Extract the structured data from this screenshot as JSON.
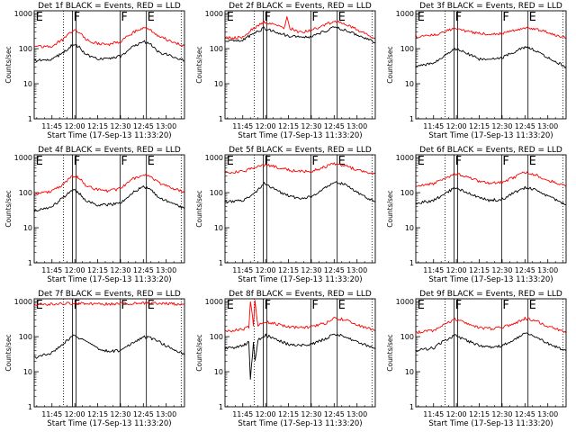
{
  "shared": {
    "xlabel": "Start Time (17-Sep-13 11:33:20)",
    "ylabel": "Counts/sec",
    "x_tick_labels": [
      "11:45",
      "12:00",
      "12:15",
      "12:30",
      "12:45",
      "13:00"
    ],
    "y_tick_labels": [
      "1",
      "10",
      "100",
      "1000"
    ],
    "colors": {
      "events": "#000000",
      "lld": "#ff0000",
      "frame": "#000000",
      "background": "#ffffff"
    }
  },
  "chart_data": [
    {
      "type": "line",
      "title": "Det 1f BLACK = Events, RED = LLD",
      "xlim": [
        "11:33:20",
        "13:12:00"
      ],
      "ylim": [
        1,
        1200
      ],
      "yscale": "log",
      "flags": [
        {
          "label": "E",
          "time": "11:33:40"
        },
        {
          "label": "F",
          "time": "11:58:30"
        },
        {
          "label": "F",
          "time": "12:29:40"
        },
        {
          "label": "E",
          "time": "12:47:00"
        }
      ],
      "flag_lines": [
        "11:58:30",
        "12:00:50",
        "12:29:40",
        "12:47:00"
      ],
      "dotted_lines": [
        "11:52:30",
        "13:09:50"
      ],
      "series": [
        {
          "name": "Events",
          "color": "#000000",
          "x": [
            "11:33:20",
            "11:45:00",
            "11:52:00",
            "11:59:00",
            "12:03:00",
            "12:07:00",
            "12:15:00",
            "12:22:00",
            "12:30:00",
            "12:38:00",
            "12:45:00",
            "12:50:00",
            "12:55:00",
            "13:05:00",
            "13:12:00"
          ],
          "y": [
            45,
            50,
            75,
            135,
            110,
            70,
            50,
            52,
            60,
            110,
            160,
            130,
            80,
            60,
            45
          ]
        },
        {
          "name": "LLD",
          "color": "#ff0000",
          "x": [
            "11:33:20",
            "11:45:00",
            "11:52:00",
            "11:59:00",
            "12:03:00",
            "12:07:00",
            "12:15:00",
            "12:22:00",
            "12:30:00",
            "12:38:00",
            "12:45:00",
            "12:50:00",
            "12:55:00",
            "13:05:00",
            "13:12:00"
          ],
          "y": [
            110,
            120,
            180,
            330,
            290,
            180,
            140,
            130,
            160,
            280,
            400,
            330,
            230,
            150,
            120
          ]
        }
      ]
    },
    {
      "type": "line",
      "title": "Det 2f BLACK = Events, RED = LLD",
      "xlim": [
        "11:33:20",
        "13:12:00"
      ],
      "ylim": [
        1,
        1200
      ],
      "yscale": "log",
      "flags": [
        {
          "label": "E",
          "time": "11:33:40"
        },
        {
          "label": "F",
          "time": "11:58:30"
        },
        {
          "label": "F",
          "time": "12:29:40"
        },
        {
          "label": "E",
          "time": "12:47:00"
        }
      ],
      "flag_lines": [
        "11:58:30",
        "12:00:50",
        "12:29:40",
        "12:47:00"
      ],
      "dotted_lines": [
        "11:52:30",
        "13:09:50"
      ],
      "series": [
        {
          "name": "Events",
          "color": "#000000",
          "x": [
            "11:33:20",
            "11:45:00",
            "11:52:00",
            "11:59:00",
            "12:05:00",
            "12:15:00",
            "12:22:00",
            "12:30:00",
            "12:40:00",
            "12:45:00",
            "12:52:00",
            "13:00:00",
            "13:12:00"
          ],
          "y": [
            165,
            175,
            270,
            380,
            310,
            230,
            210,
            220,
            330,
            400,
            350,
            250,
            150
          ]
        },
        {
          "name": "LLD",
          "color": "#ff0000",
          "x": [
            "11:33:20",
            "11:45:00",
            "11:52:00",
            "11:59:00",
            "12:05:00",
            "12:12:00",
            "12:14:00",
            "12:16:00",
            "12:22:00",
            "12:30:00",
            "12:40:00",
            "12:45:00",
            "12:52:00",
            "13:00:00",
            "13:12:00"
          ],
          "y": [
            200,
            210,
            380,
            560,
            500,
            380,
            800,
            380,
            300,
            330,
            500,
            600,
            500,
            350,
            200
          ]
        }
      ]
    },
    {
      "type": "line",
      "title": "Det 3f BLACK = Events, RED = LLD",
      "xlim": [
        "11:33:20",
        "13:12:00"
      ],
      "ylim": [
        1,
        1200
      ],
      "yscale": "log",
      "flags": [
        {
          "label": "E",
          "time": "11:33:40"
        },
        {
          "label": "F",
          "time": "11:58:30"
        },
        {
          "label": "F",
          "time": "12:29:40"
        },
        {
          "label": "E",
          "time": "12:47:00"
        }
      ],
      "flag_lines": [
        "11:58:30",
        "12:00:50",
        "12:29:40",
        "12:47:00"
      ],
      "dotted_lines": [
        "11:52:30",
        "13:09:50"
      ],
      "series": [
        {
          "name": "Events",
          "color": "#000000",
          "x": [
            "11:33:20",
            "11:45:00",
            "11:52:00",
            "11:59:00",
            "12:05:00",
            "12:15:00",
            "12:22:00",
            "12:30:00",
            "12:40:00",
            "12:45:00",
            "12:52:00",
            "13:00:00",
            "13:12:00"
          ],
          "y": [
            30,
            38,
            60,
            100,
            80,
            50,
            48,
            55,
            90,
            110,
            90,
            55,
            30
          ]
        },
        {
          "name": "LLD",
          "color": "#ff0000",
          "x": [
            "11:33:20",
            "11:45:00",
            "11:52:00",
            "11:59:00",
            "12:05:00",
            "12:15:00",
            "12:22:00",
            "12:30:00",
            "12:40:00",
            "12:45:00",
            "12:52:00",
            "13:00:00",
            "13:12:00"
          ],
          "y": [
            220,
            240,
            300,
            380,
            330,
            270,
            260,
            270,
            350,
            400,
            360,
            290,
            200
          ]
        }
      ]
    },
    {
      "type": "line",
      "title": "Det 4f BLACK = Events, RED = LLD",
      "xlim": [
        "11:33:20",
        "13:12:00"
      ],
      "ylim": [
        1,
        1200
      ],
      "yscale": "log",
      "flags": [
        {
          "label": "E",
          "time": "11:33:40"
        },
        {
          "label": "F",
          "time": "11:58:30"
        },
        {
          "label": "F",
          "time": "12:29:40"
        },
        {
          "label": "E",
          "time": "12:47:00"
        }
      ],
      "flag_lines": [
        "11:58:30",
        "12:00:50",
        "12:29:40",
        "12:47:00"
      ],
      "dotted_lines": [
        "11:52:30",
        "13:09:50"
      ],
      "series": [
        {
          "name": "Events",
          "color": "#000000",
          "x": [
            "11:33:20",
            "11:45:00",
            "11:52:00",
            "11:59:00",
            "12:03:00",
            "12:07:00",
            "12:15:00",
            "12:22:00",
            "12:30:00",
            "12:38:00",
            "12:45:00",
            "12:50:00",
            "12:55:00",
            "13:05:00",
            "13:12:00"
          ],
          "y": [
            30,
            40,
            70,
            120,
            95,
            60,
            45,
            45,
            50,
            100,
            150,
            120,
            70,
            50,
            35
          ]
        },
        {
          "name": "LLD",
          "color": "#ff0000",
          "x": [
            "11:33:20",
            "11:45:00",
            "11:52:00",
            "11:59:00",
            "12:03:00",
            "12:07:00",
            "12:15:00",
            "12:22:00",
            "12:30:00",
            "12:38:00",
            "12:45:00",
            "12:50:00",
            "12:55:00",
            "13:05:00",
            "13:12:00"
          ],
          "y": [
            90,
            110,
            170,
            300,
            260,
            160,
            120,
            110,
            130,
            240,
            330,
            280,
            190,
            130,
            100
          ]
        }
      ]
    },
    {
      "type": "line",
      "title": "Det 5f BLACK = Events, RED = LLD",
      "xlim": [
        "11:33:20",
        "13:12:00"
      ],
      "ylim": [
        1,
        1200
      ],
      "yscale": "log",
      "flags": [
        {
          "label": "E",
          "time": "11:33:40"
        },
        {
          "label": "F",
          "time": "11:58:30"
        },
        {
          "label": "F",
          "time": "12:29:40"
        },
        {
          "label": "E",
          "time": "12:47:00"
        }
      ],
      "flag_lines": [
        "11:58:30",
        "12:00:50",
        "12:29:40",
        "12:47:00"
      ],
      "dotted_lines": [
        "11:52:30",
        "13:09:50"
      ],
      "series": [
        {
          "name": "Events",
          "color": "#000000",
          "x": [
            "11:33:20",
            "11:45:00",
            "11:52:00",
            "11:59:00",
            "12:05:00",
            "12:15:00",
            "12:22:00",
            "12:30:00",
            "12:40:00",
            "12:45:00",
            "12:52:00",
            "13:00:00",
            "13:12:00"
          ],
          "y": [
            55,
            60,
            90,
            180,
            130,
            80,
            70,
            75,
            140,
            210,
            170,
            100,
            55
          ]
        },
        {
          "name": "LLD",
          "color": "#ff0000",
          "x": [
            "11:33:20",
            "11:45:00",
            "11:52:00",
            "11:59:00",
            "12:05:00",
            "12:15:00",
            "12:22:00",
            "12:30:00",
            "12:40:00",
            "12:45:00",
            "12:52:00",
            "13:00:00",
            "13:12:00"
          ],
          "y": [
            380,
            400,
            500,
            620,
            560,
            440,
            400,
            410,
            560,
            680,
            580,
            450,
            350
          ]
        }
      ]
    },
    {
      "type": "line",
      "title": "Det 6f BLACK = Events, RED = LLD",
      "xlim": [
        "11:33:20",
        "13:12:00"
      ],
      "ylim": [
        1,
        1200
      ],
      "yscale": "log",
      "flags": [
        {
          "label": "E",
          "time": "11:33:40"
        },
        {
          "label": "F",
          "time": "11:58:30"
        },
        {
          "label": "F",
          "time": "12:29:40"
        },
        {
          "label": "E",
          "time": "12:47:00"
        }
      ],
      "flag_lines": [
        "11:58:30",
        "12:00:50",
        "12:29:40",
        "12:47:00"
      ],
      "dotted_lines": [
        "11:52:30",
        "13:09:50"
      ],
      "series": [
        {
          "name": "Events",
          "color": "#000000",
          "x": [
            "11:33:20",
            "11:45:00",
            "11:52:00",
            "11:59:00",
            "12:05:00",
            "12:15:00",
            "12:22:00",
            "12:30:00",
            "12:40:00",
            "12:45:00",
            "12:52:00",
            "13:00:00",
            "13:12:00"
          ],
          "y": [
            50,
            60,
            90,
            140,
            110,
            70,
            60,
            65,
            110,
            140,
            120,
            80,
            45
          ]
        },
        {
          "name": "LLD",
          "color": "#ff0000",
          "x": [
            "11:33:20",
            "11:45:00",
            "11:52:00",
            "11:59:00",
            "12:05:00",
            "12:15:00",
            "12:22:00",
            "12:30:00",
            "12:40:00",
            "12:45:00",
            "12:52:00",
            "13:00:00",
            "13:12:00"
          ],
          "y": [
            160,
            180,
            250,
            350,
            300,
            210,
            190,
            200,
            300,
            380,
            320,
            230,
            150
          ]
        }
      ]
    },
    {
      "type": "line",
      "title": "Det 7f BLACK = Events, RED = LLD",
      "xlim": [
        "11:33:20",
        "13:12:00"
      ],
      "ylim": [
        1,
        1200
      ],
      "yscale": "log",
      "flags": [
        {
          "label": "E",
          "time": "11:33:40"
        },
        {
          "label": "F",
          "time": "11:58:30"
        },
        {
          "label": "F",
          "time": "12:29:40"
        },
        {
          "label": "E",
          "time": "12:47:00"
        }
      ],
      "flag_lines": [
        "11:58:30",
        "12:00:50",
        "12:29:40",
        "12:47:00"
      ],
      "dotted_lines": [
        "11:52:30",
        "13:09:50"
      ],
      "series": [
        {
          "name": "Events",
          "color": "#000000",
          "x": [
            "11:33:20",
            "11:45:00",
            "11:52:00",
            "11:59:00",
            "12:05:00",
            "12:15:00",
            "12:22:00",
            "12:30:00",
            "12:40:00",
            "12:45:00",
            "12:52:00",
            "13:00:00",
            "13:12:00"
          ],
          "y": [
            25,
            35,
            60,
            110,
            80,
            45,
            38,
            40,
            75,
            100,
            85,
            55,
            30
          ]
        },
        {
          "name": "LLD",
          "color": "#ff0000",
          "x": [
            "11:33:20",
            "11:45:00",
            "11:52:00",
            "11:59:00",
            "12:05:00",
            "12:15:00",
            "12:22:00",
            "12:30:00",
            "12:40:00",
            "12:45:00",
            "12:52:00",
            "13:00:00",
            "13:12:00"
          ],
          "y": [
            850,
            850,
            880,
            900,
            880,
            860,
            860,
            870,
            900,
            920,
            900,
            870,
            850
          ]
        }
      ]
    },
    {
      "type": "line",
      "title": "Det 8f BLACK = Events, RED = LLD",
      "xlim": [
        "11:33:20",
        "13:12:00"
      ],
      "ylim": [
        1,
        1200
      ],
      "yscale": "log",
      "flags": [
        {
          "label": "E",
          "time": "11:33:40"
        },
        {
          "label": "F",
          "time": "11:58:30"
        },
        {
          "label": "F",
          "time": "12:29:40"
        },
        {
          "label": "E",
          "time": "12:47:00"
        }
      ],
      "flag_lines": [
        "11:58:30",
        "12:00:50",
        "12:29:40",
        "12:47:00"
      ],
      "dotted_lines": [
        "11:52:30",
        "13:09:50"
      ],
      "series": [
        {
          "name": "Events",
          "color": "#000000",
          "x": [
            "11:33:20",
            "11:45:00",
            "11:49:00",
            "11:50:00",
            "11:52:00",
            "11:53:00",
            "11:55:00",
            "12:00:00",
            "12:05:00",
            "12:15:00",
            "12:22:00",
            "12:30:00",
            "12:40:00",
            "12:45:00",
            "12:52:00",
            "13:00:00",
            "13:12:00"
          ],
          "y": [
            45,
            55,
            70,
            6,
            70,
            20,
            80,
            110,
            90,
            60,
            55,
            60,
            90,
            120,
            100,
            70,
            45
          ]
        },
        {
          "name": "LLD",
          "color": "#ff0000",
          "x": [
            "11:33:20",
            "11:45:00",
            "11:49:00",
            "11:50:00",
            "11:52:00",
            "11:53:00",
            "11:55:00",
            "12:00:00",
            "12:05:00",
            "12:15:00",
            "12:22:00",
            "12:30:00",
            "12:40:00",
            "12:45:00",
            "12:52:00",
            "13:00:00",
            "13:12:00"
          ],
          "y": [
            140,
            160,
            190,
            1000,
            220,
            1000,
            200,
            270,
            240,
            190,
            180,
            190,
            250,
            350,
            300,
            220,
            150
          ]
        }
      ]
    },
    {
      "type": "line",
      "title": "Det 9f BLACK = Events, RED = LLD",
      "xlim": [
        "11:33:20",
        "13:12:00"
      ],
      "ylim": [
        1,
        1200
      ],
      "yscale": "log",
      "flags": [
        {
          "label": "E",
          "time": "11:33:40"
        },
        {
          "label": "F",
          "time": "11:58:30"
        },
        {
          "label": "F",
          "time": "12:29:40"
        },
        {
          "label": "E",
          "time": "12:47:00"
        }
      ],
      "flag_lines": [
        "11:58:30",
        "12:00:50",
        "12:29:40",
        "12:47:00"
      ],
      "dotted_lines": [
        "11:52:30",
        "13:09:50"
      ],
      "series": [
        {
          "name": "Events",
          "color": "#000000",
          "x": [
            "11:33:20",
            "11:45:00",
            "11:52:00",
            "11:59:00",
            "12:05:00",
            "12:15:00",
            "12:22:00",
            "12:30:00",
            "12:40:00",
            "12:45:00",
            "12:52:00",
            "13:00:00",
            "13:12:00"
          ],
          "y": [
            40,
            48,
            75,
            110,
            85,
            55,
            50,
            55,
            90,
            120,
            100,
            65,
            40
          ]
        },
        {
          "name": "LLD",
          "color": "#ff0000",
          "x": [
            "11:33:20",
            "11:45:00",
            "11:52:00",
            "11:59:00",
            "12:05:00",
            "12:15:00",
            "12:22:00",
            "12:30:00",
            "12:40:00",
            "12:45:00",
            "12:52:00",
            "13:00:00",
            "13:12:00"
          ],
          "y": [
            130,
            150,
            220,
            320,
            260,
            180,
            170,
            180,
            260,
            330,
            280,
            200,
            130
          ]
        }
      ]
    }
  ]
}
